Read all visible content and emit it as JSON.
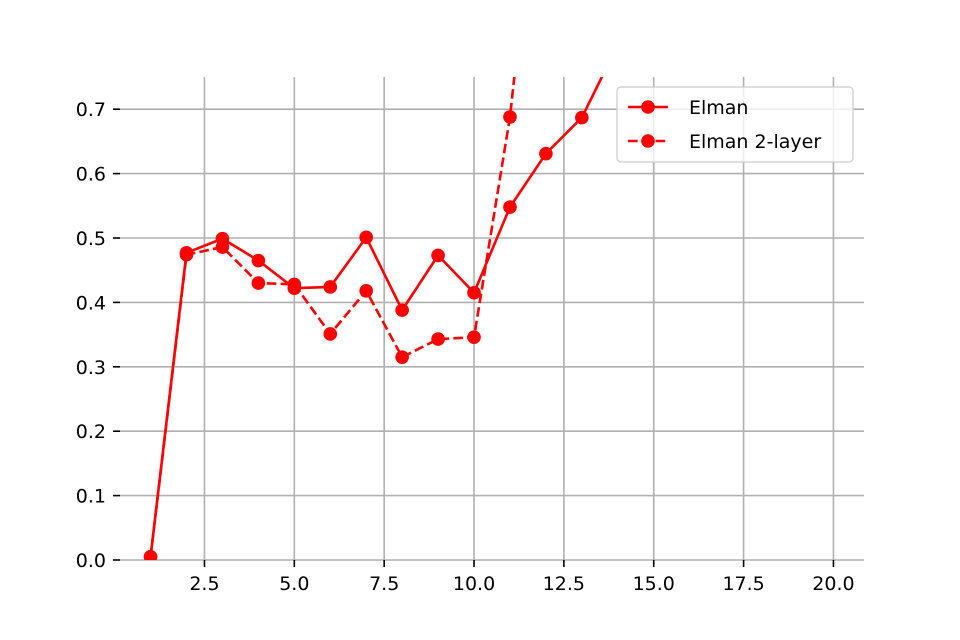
{
  "chart_data": {
    "type": "line",
    "title": "",
    "xlabel": "",
    "ylabel": "",
    "xlim": [
      0.15,
      20.85
    ],
    "ylim": [
      0.0,
      0.75
    ],
    "xticks": [
      2.5,
      5.0,
      7.5,
      10.0,
      12.5,
      15.0,
      17.5,
      20.0
    ],
    "xtick_labels": [
      "2.5",
      "5.0",
      "7.5",
      "10.0",
      "12.5",
      "15.0",
      "17.5",
      "20.0"
    ],
    "yticks": [
      0.0,
      0.1,
      0.2,
      0.3,
      0.4,
      0.5,
      0.6,
      0.7
    ],
    "ytick_labels": [
      "0.0",
      "0.1",
      "0.2",
      "0.3",
      "0.4",
      "0.5",
      "0.6",
      "0.7"
    ],
    "grid": true,
    "legend_position": "top-right",
    "series": [
      {
        "name": "Elman",
        "color": "#ff0000",
        "linestyle": "solid",
        "marker": "circle",
        "x": [
          1,
          2,
          3,
          4,
          5,
          6,
          7,
          8,
          9,
          10,
          11,
          12,
          13,
          14
        ],
        "y": [
          0.005,
          0.477,
          0.499,
          0.465,
          0.422,
          0.424,
          0.501,
          0.388,
          0.473,
          0.415,
          0.548,
          0.631,
          0.687,
          0.8
        ]
      },
      {
        "name": "Elman 2-layer",
        "color": "#ff0000",
        "linestyle": "dashed",
        "marker": "circle",
        "x": [
          1,
          2,
          3,
          4,
          5,
          6,
          7,
          8,
          9,
          10,
          11,
          12
        ],
        "y": [
          0.005,
          0.474,
          0.486,
          0.43,
          0.428,
          0.351,
          0.418,
          0.315,
          0.343,
          0.346,
          0.688,
          1.2
        ]
      }
    ]
  }
}
